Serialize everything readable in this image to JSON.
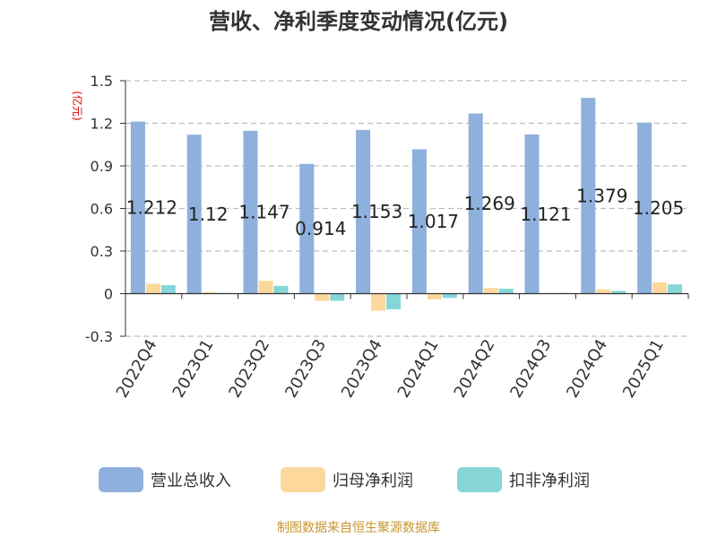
{
  "chart_data": {
    "type": "bar",
    "title": "营收、净利季度变动情况(亿元)",
    "ylabel": "(亿元)",
    "xlabel": "",
    "categories": [
      "2022Q4",
      "2023Q1",
      "2023Q2",
      "2023Q3",
      "2023Q4",
      "2024Q1",
      "2024Q2",
      "2024Q3",
      "2024Q4",
      "2025Q1"
    ],
    "series": [
      {
        "name": "营业总收入",
        "color": "#8eb0dd",
        "values": [
          1.212,
          1.12,
          1.147,
          0.914,
          1.153,
          1.017,
          1.269,
          1.121,
          1.379,
          1.205
        ],
        "data_labels": [
          "1.212",
          "1.12",
          "1.147",
          "0.914",
          "1.153",
          "1.017",
          "1.269",
          "1.121",
          "1.379",
          "1.205"
        ]
      },
      {
        "name": "归母净利润",
        "color": "#fdd89c",
        "values": [
          0.07,
          0.01,
          0.09,
          -0.05,
          -0.12,
          -0.04,
          0.04,
          0.005,
          0.03,
          0.08
        ]
      },
      {
        "name": "扣非净利润",
        "color": "#86d6d8",
        "values": [
          0.06,
          0.005,
          0.055,
          -0.05,
          -0.11,
          -0.03,
          0.035,
          0.005,
          0.02,
          0.065
        ]
      }
    ],
    "ylim": [
      -0.3,
      1.5
    ],
    "yticks": [
      "-0.3",
      "0",
      "0.3",
      "0.6",
      "0.9",
      "1.2",
      "1.5"
    ],
    "grid": true,
    "legend_position": "bottom"
  },
  "source_text": "制图数据来自恒生聚源数据库"
}
